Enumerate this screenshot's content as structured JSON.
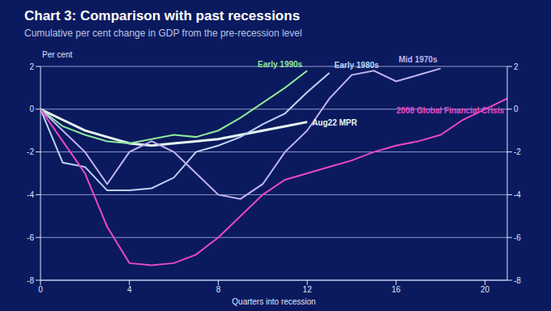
{
  "chart_data": {
    "type": "line",
    "title": "Chart 3: Comparison with past recessions",
    "subtitle": "Cumulative per cent change in GDP from the pre-recession level",
    "y_label": "Per cent",
    "x_label": "Quarters into recession",
    "x": [
      0,
      1,
      2,
      3,
      4,
      5,
      6,
      7,
      8,
      9,
      10,
      11,
      12,
      13,
      14,
      15,
      16,
      17,
      18,
      19,
      20,
      21
    ],
    "xlim": [
      0,
      21
    ],
    "xticks": [
      0,
      4,
      8,
      12,
      16,
      20
    ],
    "ylim": [
      -8,
      2
    ],
    "yticks": [
      -8,
      -6,
      -4,
      -2,
      0,
      2
    ],
    "y2lim": [
      -8,
      2
    ],
    "y2ticks": [
      -8,
      -6,
      -4,
      -2,
      0,
      2
    ],
    "grid": true,
    "series": [
      {
        "name": "Aug22 MPR",
        "color": "#e6f6ee",
        "values": [
          0,
          -0.5,
          -1,
          -1.3,
          -1.6,
          -1.7,
          -1.6,
          -1.5,
          -1.4,
          -1.2,
          -1.0,
          -0.8,
          -0.6,
          null,
          null,
          null,
          null,
          null,
          null,
          null,
          null,
          null
        ]
      },
      {
        "name": "Early 1990s",
        "color": "#8ee89a",
        "values": [
          0,
          -0.8,
          -1.2,
          -1.5,
          -1.6,
          -1.4,
          -1.2,
          -1.3,
          -1.0,
          -0.4,
          0.3,
          1.0,
          1.8,
          null,
          null,
          null,
          null,
          null,
          null,
          null,
          null,
          null
        ]
      },
      {
        "name": "Early 1980s",
        "color": "#b8d4f4",
        "values": [
          0,
          -2.5,
          -2.7,
          -3.8,
          -3.8,
          -3.7,
          -3.2,
          -2.0,
          -1.7,
          -1.3,
          -0.7,
          -0.2,
          0.8,
          1.7,
          null,
          null,
          null,
          null,
          null,
          null,
          null,
          null
        ]
      },
      {
        "name": "Mid 1970s",
        "color": "#c0b4f0",
        "values": [
          0,
          -1,
          -2,
          -3.5,
          -2,
          -1.5,
          -2,
          -3,
          -4,
          -4.2,
          -3.5,
          -2,
          -1,
          0.5,
          1.6,
          1.8,
          1.3,
          1.6,
          1.9,
          null,
          null,
          null
        ]
      },
      {
        "name": "2008 Global Financial Crisis",
        "color": "#e848c8",
        "values": [
          0,
          -1.5,
          -3,
          -5.5,
          -7.2,
          -7.3,
          -7.2,
          -6.8,
          -6.0,
          -5.0,
          -4.0,
          -3.3,
          -3.0,
          -2.7,
          -2.4,
          -2.0,
          -1.7,
          -1.5,
          -1.2,
          -0.5,
          0,
          0.5
        ]
      }
    ]
  }
}
